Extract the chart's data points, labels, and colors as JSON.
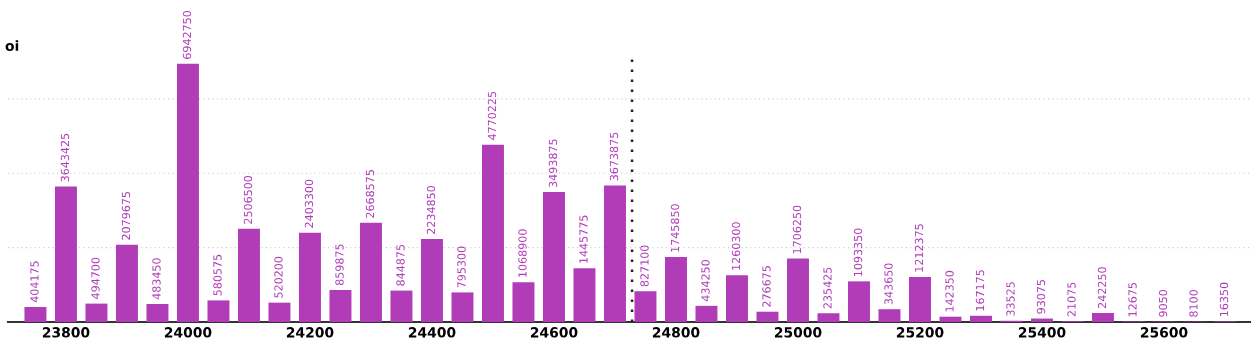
{
  "chart_data": {
    "type": "bar",
    "ylabel": "oi",
    "x": [
      23750,
      23800,
      23850,
      23900,
      23950,
      24000,
      24050,
      24100,
      24150,
      24200,
      24250,
      24300,
      24350,
      24400,
      24450,
      24500,
      24550,
      24600,
      24650,
      24700,
      24750,
      24800,
      24850,
      24900,
      24950,
      25000,
      25050,
      25100,
      25150,
      25200,
      25250,
      25300,
      25350,
      25400,
      25450,
      25500,
      25550,
      25600,
      25650,
      25700
    ],
    "values": [
      404175,
      3643425,
      494700,
      2079675,
      483450,
      6942750,
      580575,
      2506500,
      520200,
      2403300,
      859875,
      2668575,
      844875,
      2234850,
      795300,
      4770225,
      1068900,
      3493875,
      1445775,
      3673875,
      827100,
      1745850,
      434250,
      1260300,
      276675,
      1706250,
      235425,
      1093350,
      343650,
      1212375,
      142350,
      167175,
      33525,
      93075,
      21075,
      242250,
      12675,
      9050,
      8100,
      16350
    ],
    "color": "#b03cb8",
    "data_labels": true,
    "xlim": [
      23705,
      25741
    ],
    "xticks": [
      23800,
      24000,
      24200,
      24400,
      24600,
      24800,
      25000,
      25200,
      25400,
      25600
    ],
    "ylim": [
      0,
      7100000
    ],
    "yticks": [
      {
        "value": 0,
        "label": null
      },
      {
        "value": 2000000,
        "label": null
      },
      {
        "value": 4000000,
        "label": null
      },
      {
        "value": 6000000,
        "label": null
      }
    ],
    "tick_labels": "x",
    "grid": "y",
    "ref_lines": [
      {
        "axis": "x",
        "value": 24728,
        "label": null,
        "color": "#222222",
        "line_style": "dotted"
      }
    ]
  }
}
